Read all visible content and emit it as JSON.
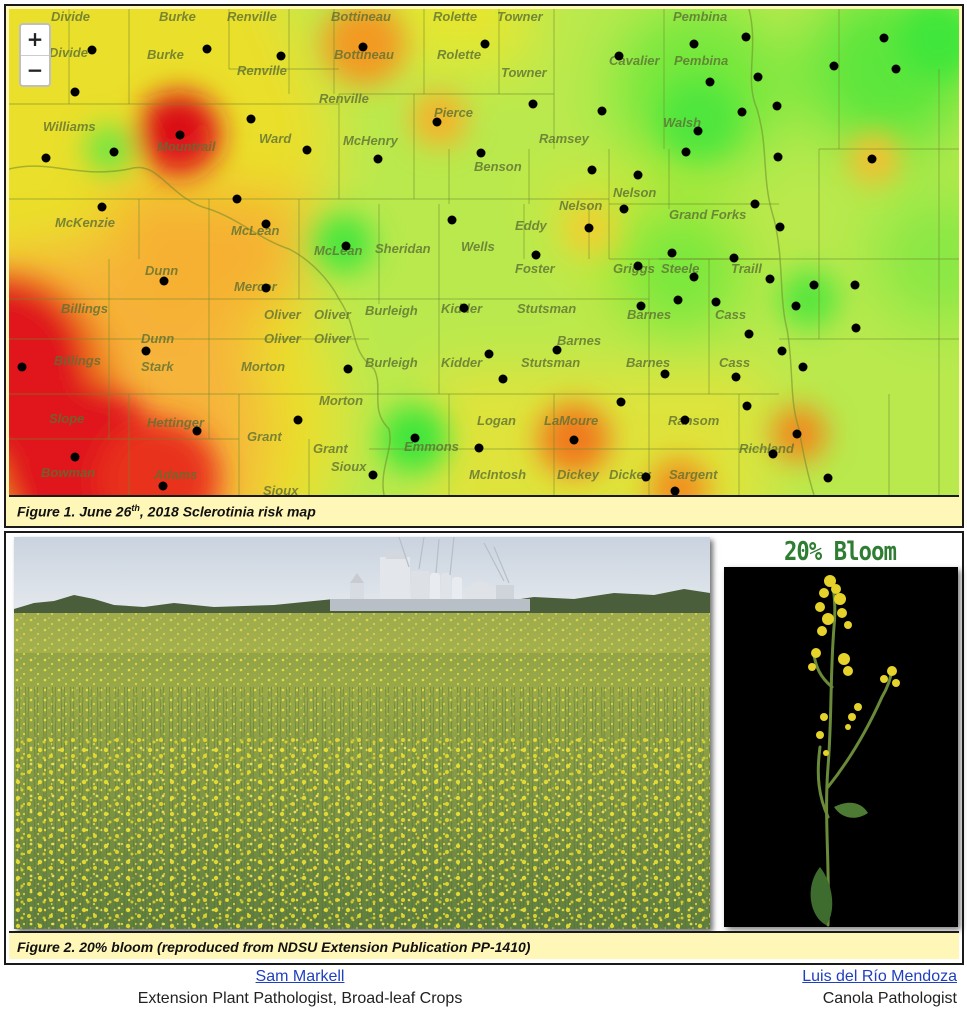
{
  "figure1": {
    "caption_pre": "Figure 1.  June 26",
    "caption_sup": "th",
    "caption_post": ", 2018 Sclerotinia risk map",
    "zoom_in": "+",
    "zoom_out": "−",
    "risk_colors": {
      "high": "#e0151a",
      "medium": "#f6a020",
      "low_medium": "#eadf2a",
      "low": "#b9e94e",
      "very_low": "#3fe63a"
    },
    "counties": [
      "Divide",
      "Burke",
      "Renville",
      "Bottineau",
      "Rolette",
      "Towner",
      "Cavalier",
      "Pembina",
      "Williams",
      "Mountrail",
      "Ward",
      "McHenry",
      "Pierce",
      "Benson",
      "Ramsey",
      "Walsh",
      "McKenzie",
      "McLean",
      "Sheridan",
      "Wells",
      "Eddy",
      "Nelson",
      "Grand Forks",
      "Foster",
      "Griggs",
      "Steele",
      "Traill",
      "Dunn",
      "Mercer",
      "Oliver",
      "Burleigh",
      "Kidder",
      "Stutsman",
      "Barnes",
      "Cass",
      "Billings",
      "Stark",
      "Morton",
      "Golden Valley",
      "Slope",
      "Hettinger",
      "Grant",
      "Emmons",
      "Logan",
      "LaMoure",
      "Ransom",
      "Richland",
      "Sioux",
      "McIntosh",
      "Dickey",
      "Sargent",
      "Bowman",
      "Adams"
    ]
  },
  "figure2": {
    "caption": "Figure 2.  20% bloom (reproduced from NDSU Extension Publication PP-1410)",
    "bloom_label": "20% Bloom"
  },
  "authors": [
    {
      "name": "Sam Markell",
      "role": "Extension Plant Pathologist, Broad-leaf Crops"
    },
    {
      "name": "Luis del Río Mendoza",
      "role": "Canola Pathologist"
    }
  ]
}
